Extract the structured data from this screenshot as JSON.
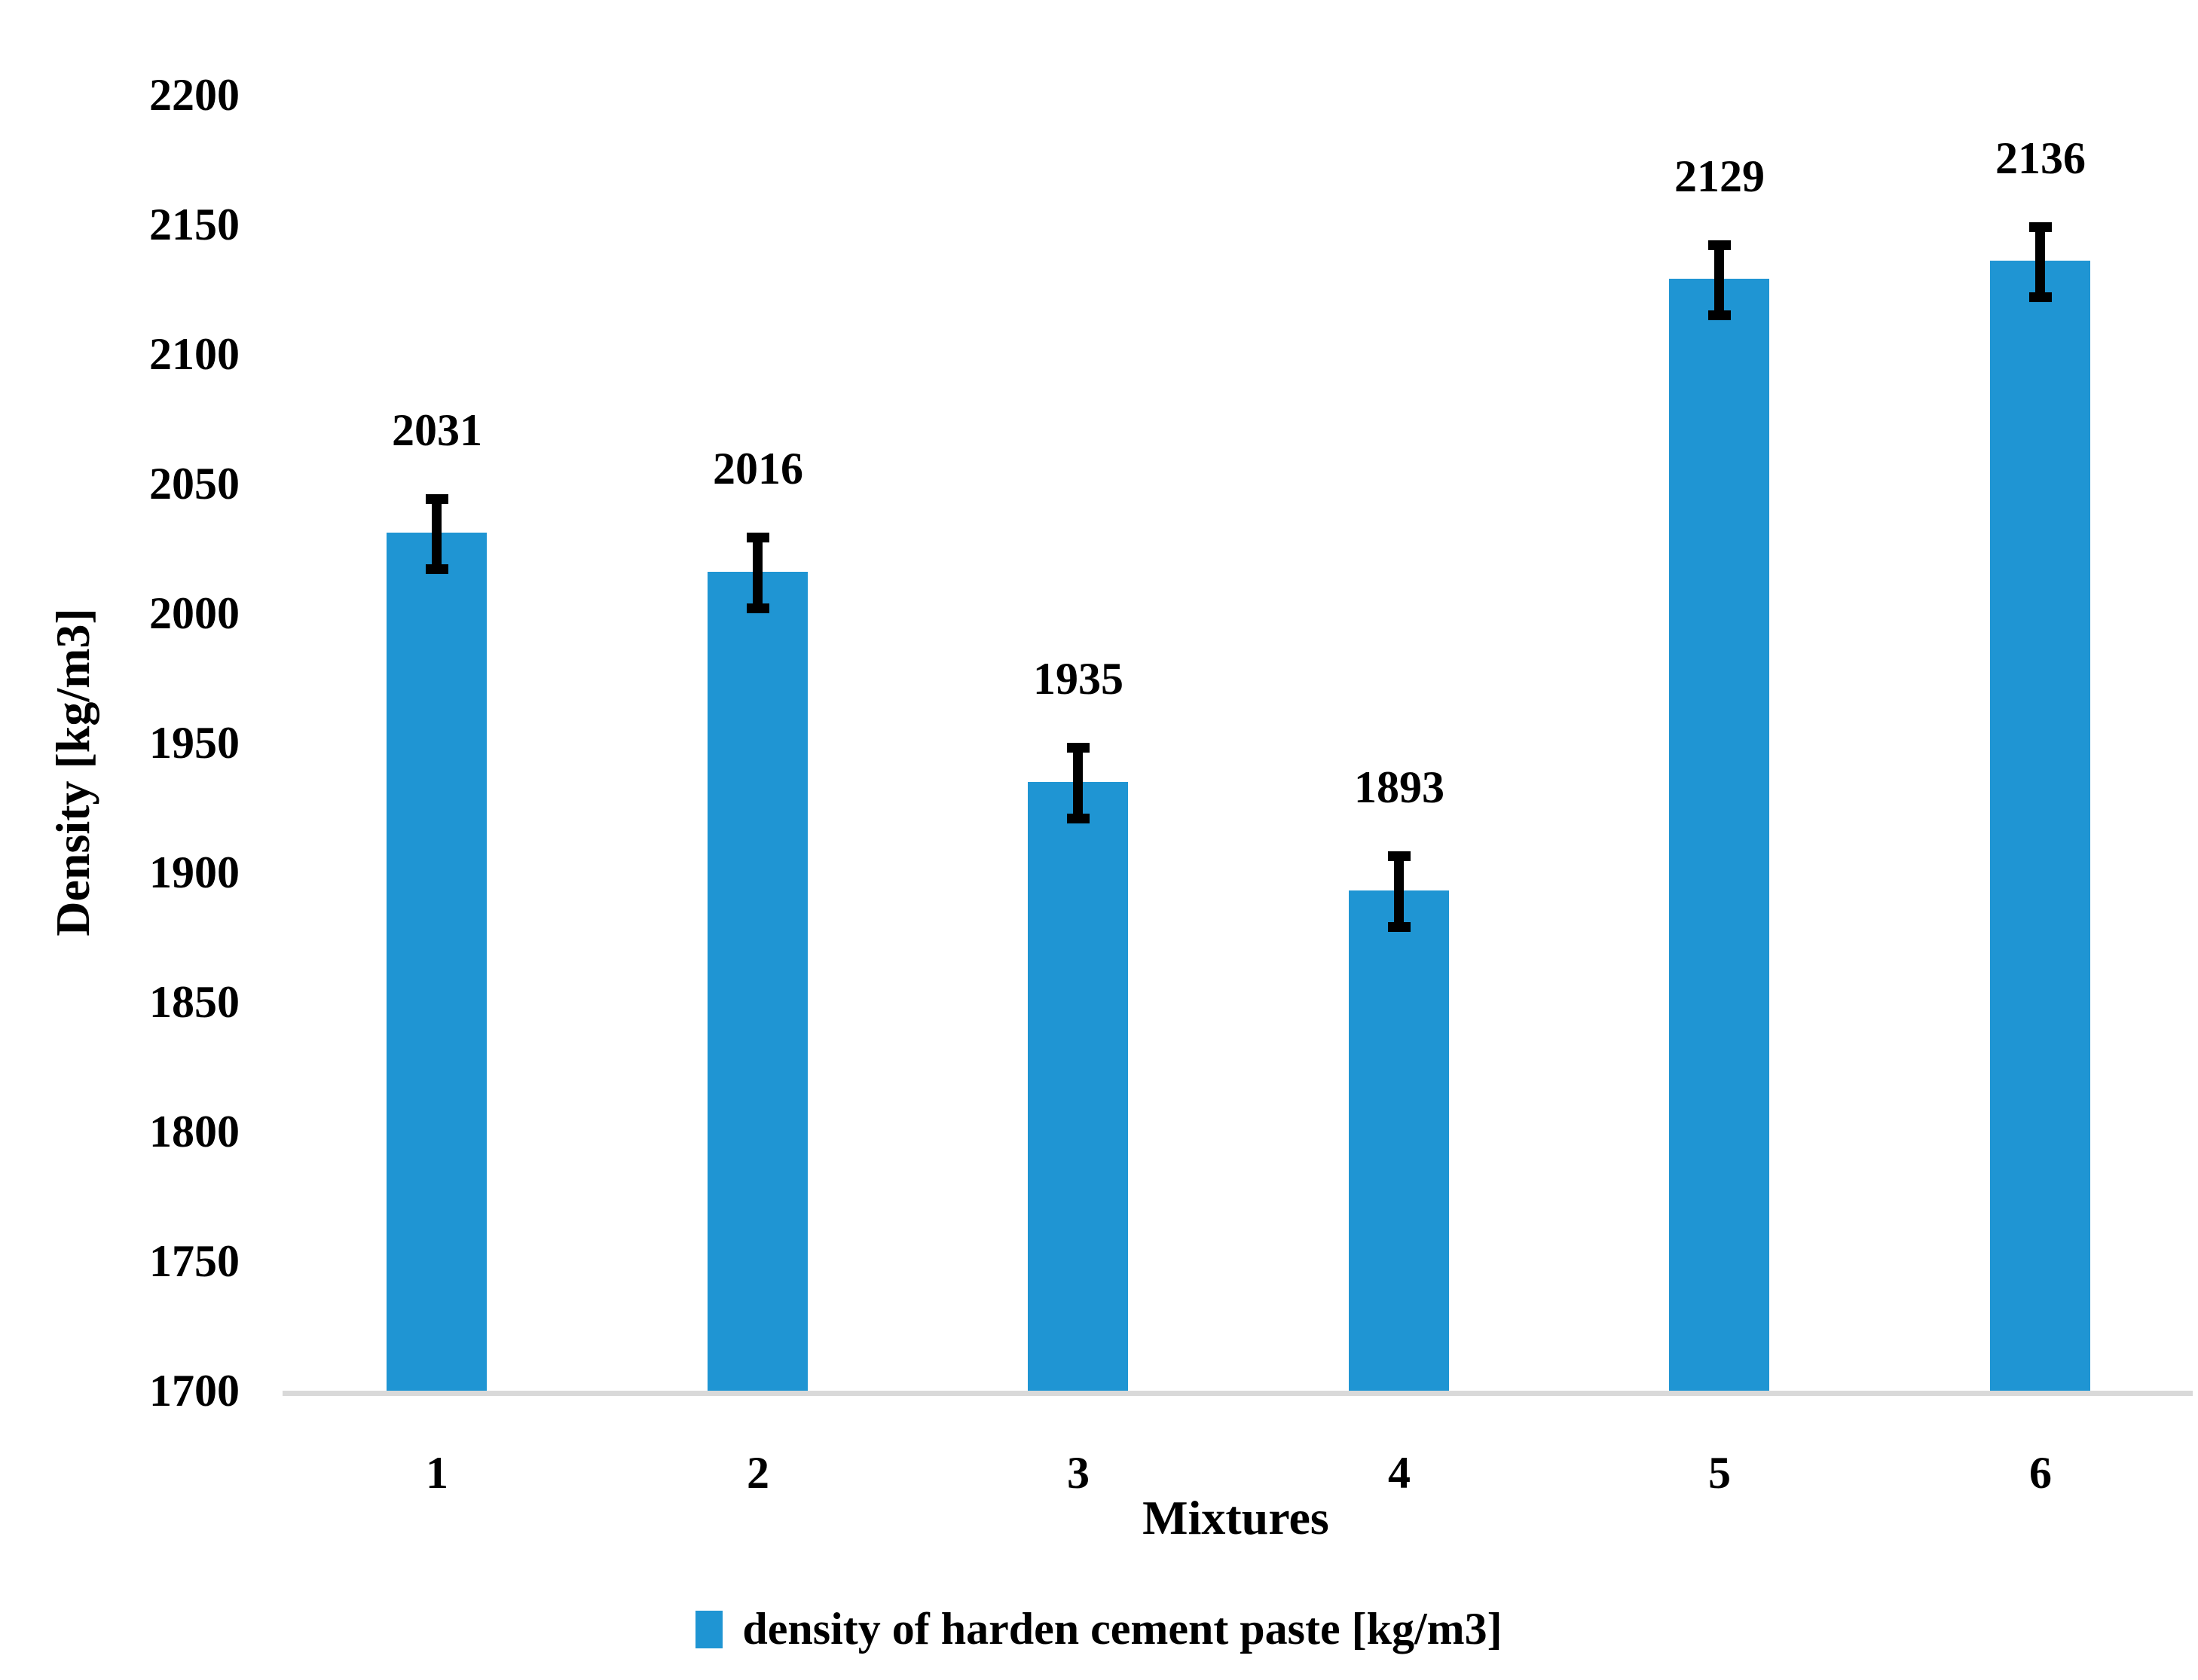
{
  "chart_data": {
    "type": "bar",
    "title": "",
    "categories": [
      "1",
      "2",
      "3",
      "4",
      "5",
      "6"
    ],
    "series": [
      {
        "name": "density of harden cement paste [kg/m3]",
        "values": [
          2031,
          2016,
          1935,
          1893,
          2129,
          2136
        ],
        "error_bars_plus": [
          15,
          15,
          15,
          15,
          15,
          15
        ],
        "error_bars_minus": [
          16,
          16,
          16,
          16,
          16,
          16
        ],
        "data_labels": [
          "2031",
          "2016",
          "1935",
          "1893",
          "2129",
          "2136"
        ]
      }
    ],
    "xlabel": "Mixtures",
    "ylabel": "Density [kg/m3]",
    "ylim": [
      1700,
      2200
    ],
    "ytick_step": 50,
    "ytick_labels": [
      "2200",
      "2150",
      "2100",
      "2050",
      "2000",
      "1950",
      "1900",
      "1850",
      "1800",
      "1750",
      "1700"
    ],
    "grid": false,
    "legend_position": "bottom",
    "legend_label": "density of harden cement paste [kg/m3]",
    "bar_color": "#1f95d3",
    "error_bar_color": "#000000",
    "axis_line_color": "#d9d9d9",
    "text_color": "#000000",
    "background_color": "#ffffff"
  }
}
